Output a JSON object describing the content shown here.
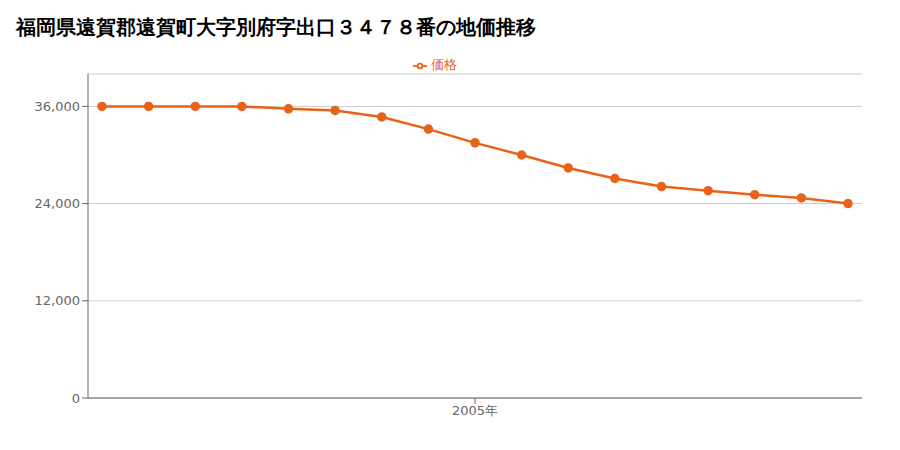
{
  "chart_data": {
    "type": "line",
    "title": "福岡県遠賀郡遠賀町大字別府字出口３４７８番の地価推移",
    "x": [
      1997,
      1998,
      1999,
      2000,
      2001,
      2002,
      2003,
      2004,
      2005,
      2006,
      2007,
      2008,
      2009,
      2010,
      2011,
      2012,
      2013
    ],
    "series": [
      {
        "name": "価格",
        "color": "#E8621A",
        "values": [
          36000,
          36000,
          36000,
          36000,
          35700,
          35500,
          34700,
          33200,
          31500,
          30000,
          28400,
          27100,
          26100,
          25600,
          25100,
          24700,
          24000
        ]
      }
    ],
    "xlim": [
      1996.7,
      2013.3
    ],
    "xticks": [
      {
        "value": 2005,
        "label": "2005年"
      }
    ],
    "ylim": [
      0,
      40000
    ],
    "yticks": [
      0,
      {
        "value": 12000,
        "label": "12,000"
      },
      {
        "value": 24000,
        "label": "24,000"
      },
      {
        "value": 36000,
        "label": "36,000"
      }
    ],
    "grid": true,
    "legend": "top",
    "marker": "o"
  }
}
